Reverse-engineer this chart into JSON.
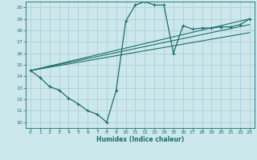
{
  "xlabel": "Humidex (Indice chaleur)",
  "bg_color": "#cde8ed",
  "grid_color": "#b0ced4",
  "line_color": "#1a6e6a",
  "xlim": [
    -0.5,
    23.5
  ],
  "ylim": [
    9.5,
    20.5
  ],
  "xticks": [
    0,
    1,
    2,
    3,
    4,
    5,
    6,
    7,
    8,
    9,
    10,
    11,
    12,
    13,
    14,
    15,
    16,
    17,
    18,
    19,
    20,
    21,
    22,
    23
  ],
  "yticks": [
    10,
    11,
    12,
    13,
    14,
    15,
    16,
    17,
    18,
    19,
    20
  ],
  "line1_x": [
    0,
    1,
    2,
    3,
    4,
    5,
    6,
    7,
    8,
    9,
    10,
    11,
    12,
    13,
    14,
    15,
    16,
    17,
    18,
    19,
    20,
    21,
    22,
    23
  ],
  "line1_y": [
    14.5,
    13.9,
    13.1,
    12.8,
    12.1,
    11.6,
    11.0,
    10.7,
    10.0,
    12.8,
    18.8,
    20.2,
    20.5,
    20.2,
    20.2,
    16.0,
    18.4,
    18.1,
    18.2,
    18.2,
    18.3,
    18.3,
    18.5,
    19.0
  ],
  "line2_x": [
    0,
    23
  ],
  "line2_y": [
    14.5,
    18.5
  ],
  "line3_x": [
    0,
    23
  ],
  "line3_y": [
    14.5,
    19.0
  ],
  "line4_x": [
    0,
    23
  ],
  "line4_y": [
    14.5,
    17.8
  ]
}
